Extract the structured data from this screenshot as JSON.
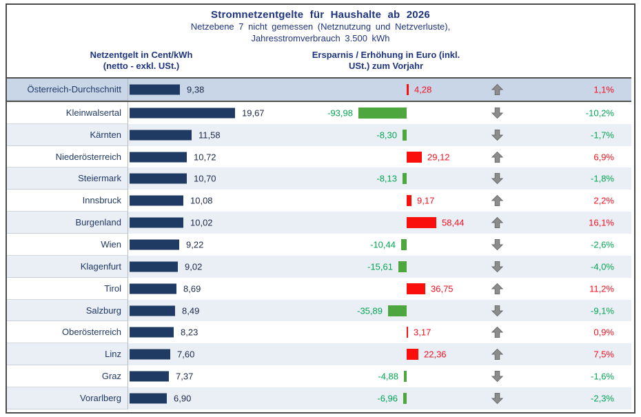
{
  "title": "Stromnetzentgelte für Haushalte ab 2026",
  "subtitle": [
    "Netzebene 7 nicht gemessen (Netznutzung und Netzverluste),",
    "Jahresstromverbrauch  3.500 kWh"
  ],
  "headers": {
    "left_line1": "Netzentgelt in Cent/kWh",
    "left_line2": "(netto - exkl. USt.)",
    "right_line1": "Ersparnis / Erhöhung in Euro (inkl.",
    "right_line2": "USt.) zum Vorjahr"
  },
  "colors": {
    "title_navy": "#1e3480",
    "label_navy": "#1f3864",
    "cent_bar_navy": "#1f3a63",
    "cent_value_text": "#1b2a4a",
    "increase_red": "#fb0f0c",
    "increase_text_red": "#f60f1e",
    "decrease_green_bar": "#4ea73e",
    "decrease_text_green": "#00a651",
    "highlight_row_bg": "#c9d6e8",
    "alt_row_bg": "#eaeef5",
    "white_row_bg": "#ffffff",
    "highlight_border": "#4f4f4f",
    "axis_gray": "#a6a6a6",
    "arrow_gray": "#8c8c8c",
    "arrow_stroke": "#6b6b6b"
  },
  "chart_data": {
    "type": "bar",
    "title": "Stromnetzentgelte für Haushalte ab 2026",
    "subtitle": "Netzebene 7 nicht gemessen (Netznutzung und Netzverluste), Jahresstromverbrauch 3.500 kWh",
    "left_axis_label": "Netzentgelt in Cent/kWh (netto - exkl. USt.)",
    "right_axis_label": "Ersparnis / Erhöhung in Euro (inkl. USt.) zum Vorjahr",
    "legend_position": "none",
    "grid": false,
    "rows": [
      {
        "region": "Österreich-Durchschnitt",
        "cent": 9.38,
        "cent_label": "9,38",
        "euro": 4.28,
        "euro_label": "4,28",
        "trend": "up",
        "percent_label": "1,1%",
        "highlight": true
      },
      {
        "region": "Kleinwalsertal",
        "cent": 19.67,
        "cent_label": "19,67",
        "euro": -93.98,
        "euro_label": "-93,98",
        "trend": "down",
        "percent_label": "-10,2%",
        "highlight": false
      },
      {
        "region": "Kärnten",
        "cent": 11.58,
        "cent_label": "11,58",
        "euro": -8.3,
        "euro_label": "-8,30",
        "trend": "down",
        "percent_label": "-1,7%",
        "highlight": false
      },
      {
        "region": "Niederösterreich",
        "cent": 10.72,
        "cent_label": "10,72",
        "euro": 29.12,
        "euro_label": "29,12",
        "trend": "up",
        "percent_label": "6,9%",
        "highlight": false
      },
      {
        "region": "Steiermark",
        "cent": 10.7,
        "cent_label": "10,70",
        "euro": -8.13,
        "euro_label": "-8,13",
        "trend": "down",
        "percent_label": "-1,8%",
        "highlight": false
      },
      {
        "region": "Innsbruck",
        "cent": 10.08,
        "cent_label": "10,08",
        "euro": 9.17,
        "euro_label": "9,17",
        "trend": "up",
        "percent_label": "2,2%",
        "highlight": false
      },
      {
        "region": "Burgenland",
        "cent": 10.02,
        "cent_label": "10,02",
        "euro": 58.44,
        "euro_label": "58,44",
        "trend": "up",
        "percent_label": "16,1%",
        "highlight": false
      },
      {
        "region": "Wien",
        "cent": 9.22,
        "cent_label": "9,22",
        "euro": -10.44,
        "euro_label": "-10,44",
        "trend": "down",
        "percent_label": "-2,6%",
        "highlight": false
      },
      {
        "region": "Klagenfurt",
        "cent": 9.02,
        "cent_label": "9,02",
        "euro": -15.61,
        "euro_label": "-15,61",
        "trend": "down",
        "percent_label": "-4,0%",
        "highlight": false
      },
      {
        "region": "Tirol",
        "cent": 8.69,
        "cent_label": "8,69",
        "euro": 36.75,
        "euro_label": "36,75",
        "trend": "up",
        "percent_label": "11,2%",
        "highlight": false
      },
      {
        "region": "Salzburg",
        "cent": 8.49,
        "cent_label": "8,49",
        "euro": -35.89,
        "euro_label": "-35,89",
        "trend": "down",
        "percent_label": "-9,1%",
        "highlight": false
      },
      {
        "region": "Oberösterreich",
        "cent": 8.23,
        "cent_label": "8,23",
        "euro": 3.17,
        "euro_label": "3,17",
        "trend": "up",
        "percent_label": "0,9%",
        "highlight": false
      },
      {
        "region": "Linz",
        "cent": 7.6,
        "cent_label": "7,60",
        "euro": 22.36,
        "euro_label": "22,36",
        "trend": "up",
        "percent_label": "7,5%",
        "highlight": false
      },
      {
        "region": "Graz",
        "cent": 7.37,
        "cent_label": "7,37",
        "euro": -4.88,
        "euro_label": "-4,88",
        "trend": "down",
        "percent_label": "-1,6%",
        "highlight": false
      },
      {
        "region": "Vorarlberg",
        "cent": 6.9,
        "cent_label": "6,90",
        "euro": -6.96,
        "euro_label": "-6,96",
        "trend": "down",
        "percent_label": "-2,3%",
        "highlight": false
      }
    ]
  }
}
